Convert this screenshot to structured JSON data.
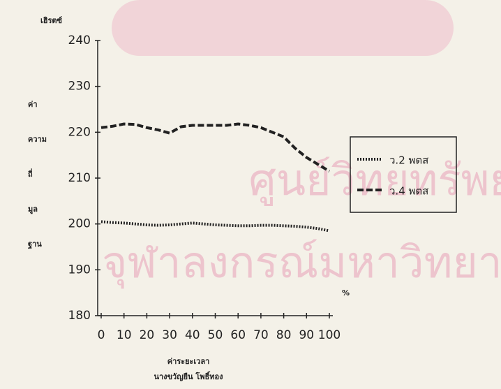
{
  "chart_data": {
    "type": "line",
    "yunit": "เฮิรตซ์",
    "ylabel": [
      "ค่า",
      "ความ",
      "ถี่",
      "มูล",
      "ฐาน"
    ],
    "xlabel": "ค่าระยะเวลา",
    "xunit": "%",
    "author": "นางขวัญยืน โพธิ์ทอง",
    "watermark": [
      "ศูนย์วิทยทรัพยากร",
      "จุฬาลงกรณ์มหาวิทยาลัย"
    ],
    "x": [
      0,
      5,
      10,
      15,
      20,
      25,
      30,
      35,
      40,
      45,
      50,
      55,
      60,
      65,
      70,
      75,
      80,
      85,
      90,
      95,
      100
    ],
    "series": [
      {
        "name": "ว.2 พตส",
        "color": "#222222",
        "style": "dotted",
        "values": [
          200.5,
          200.3,
          200.2,
          200,
          199.8,
          199.7,
          199.8,
          200,
          200.2,
          200,
          199.8,
          199.7,
          199.6,
          199.6,
          199.7,
          199.7,
          199.6,
          199.5,
          199.3,
          199,
          198.5
        ]
      },
      {
        "name": "ว.4 พตส",
        "color": "#222222",
        "style": "dashed",
        "values": [
          221,
          221.3,
          221.8,
          221.7,
          221,
          220.5,
          219.8,
          221.2,
          221.5,
          221.5,
          221.5,
          221.5,
          221.8,
          221.5,
          221,
          220,
          219,
          216.5,
          214.5,
          213,
          211.5
        ]
      }
    ],
    "xlim": [
      0,
      100
    ],
    "xticks": [
      0,
      10,
      20,
      30,
      40,
      50,
      60,
      70,
      80,
      90,
      100
    ],
    "ylim": [
      180,
      240
    ],
    "yticks": [
      180,
      190,
      200,
      210,
      220,
      230,
      240
    ]
  }
}
